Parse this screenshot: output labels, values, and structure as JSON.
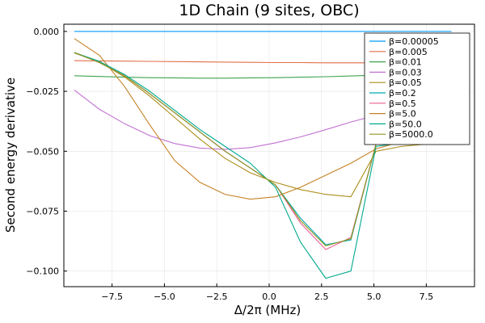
{
  "chart_data": {
    "type": "line",
    "title": "1D Chain (9 sites, OBC)",
    "xlabel": "Δ/2π (MHz)",
    "ylabel": "Second energy derivative",
    "xlim": [
      -9.8,
      9.8
    ],
    "ylim": [
      -0.1065,
      0.003
    ],
    "x_ticks": [
      -7.5,
      -5.0,
      -2.5,
      0.0,
      2.5,
      5.0,
      7.5
    ],
    "x_tick_labels": [
      "−7.5",
      "−5.0",
      "−2.5",
      "0.0",
      "2.5",
      "5.0",
      "7.5"
    ],
    "y_ticks": [
      0.0,
      -0.025,
      -0.05,
      -0.075,
      -0.1
    ],
    "y_tick_labels": [
      "0.000",
      "−0.025",
      "−0.050",
      "−0.075",
      "−0.100"
    ],
    "grid": true,
    "legend_position": "top-right",
    "x": [
      -9.3,
      -8.1,
      -6.9,
      -5.7,
      -4.5,
      -3.3,
      -2.1,
      -0.9,
      0.3,
      1.5,
      2.7,
      3.9,
      5.1,
      6.3,
      7.5,
      8.7
    ],
    "series": [
      {
        "name": "β=0.00005",
        "color": "#009AFA",
        "values": [
          0.0,
          0.0,
          0.0,
          0.0,
          0.0,
          0.0,
          0.0,
          0.0,
          0.0,
          0.0,
          0.0,
          0.0,
          0.0,
          0.0,
          0.0,
          0.0
        ]
      },
      {
        "name": "β=0.005",
        "color": "#E36F47",
        "values": [
          -0.0122,
          -0.0123,
          -0.0124,
          -0.0125,
          -0.0126,
          -0.0127,
          -0.0128,
          -0.0129,
          -0.013,
          -0.013,
          -0.0131,
          -0.0131,
          -0.0131,
          -0.0131,
          -0.0132,
          -0.0132
        ]
      },
      {
        "name": "β=0.01",
        "color": "#3EA44E",
        "values": [
          -0.0185,
          -0.0188,
          -0.0191,
          -0.0193,
          -0.0194,
          -0.0195,
          -0.0195,
          -0.0194,
          -0.0193,
          -0.0191,
          -0.0189,
          -0.0186,
          -0.0183,
          -0.018,
          -0.0177,
          -0.0174
        ]
      },
      {
        "name": "β=0.03",
        "color": "#C271D2",
        "values": [
          -0.0245,
          -0.0325,
          -0.0385,
          -0.0435,
          -0.0468,
          -0.0487,
          -0.0492,
          -0.0485,
          -0.0465,
          -0.044,
          -0.041,
          -0.0378,
          -0.035,
          -0.033,
          -0.0315,
          -0.0305
        ]
      },
      {
        "name": "β=0.05",
        "color": "#AC8D18",
        "values": [
          -0.009,
          -0.0128,
          -0.019,
          -0.027,
          -0.036,
          -0.045,
          -0.053,
          -0.059,
          -0.063,
          -0.066,
          -0.068,
          -0.069,
          -0.05,
          -0.048,
          -0.047,
          -0.046
        ]
      },
      {
        "name": "β=0.2",
        "color": "#00A9AD",
        "values": [
          -0.0088,
          -0.013,
          -0.0185,
          -0.026,
          -0.034,
          -0.042,
          -0.05,
          -0.057,
          -0.064,
          -0.078,
          -0.089,
          -0.087,
          -0.047,
          -0.046,
          -0.045,
          -0.044
        ]
      },
      {
        "name": "β=0.5",
        "color": "#ED5D92",
        "values": [
          -0.0088,
          -0.013,
          -0.0185,
          -0.026,
          -0.034,
          -0.042,
          -0.05,
          -0.057,
          -0.064,
          -0.08,
          -0.091,
          -0.086,
          -0.047,
          -0.046,
          -0.045,
          -0.044
        ]
      },
      {
        "name": "β=5.0",
        "color": "#C68125",
        "values": [
          -0.003,
          -0.01,
          -0.023,
          -0.039,
          -0.054,
          -0.063,
          -0.068,
          -0.07,
          -0.069,
          -0.065,
          -0.06,
          -0.055,
          -0.049,
          -0.046,
          -0.044,
          -0.043
        ]
      },
      {
        "name": "β=50.0",
        "color": "#00A98D",
        "values": [
          -0.0088,
          -0.0125,
          -0.018,
          -0.025,
          -0.033,
          -0.041,
          -0.048,
          -0.055,
          -0.065,
          -0.088,
          -0.103,
          -0.1,
          -0.048,
          -0.0465,
          -0.0455,
          -0.0445
        ]
      },
      {
        "name": "β=5000.0",
        "color": "#8E971D",
        "values": [
          -0.0088,
          -0.013,
          -0.0185,
          -0.026,
          -0.034,
          -0.042,
          -0.05,
          -0.057,
          -0.064,
          -0.079,
          -0.0895,
          -0.0865,
          -0.047,
          -0.046,
          -0.045,
          -0.044
        ]
      }
    ]
  }
}
